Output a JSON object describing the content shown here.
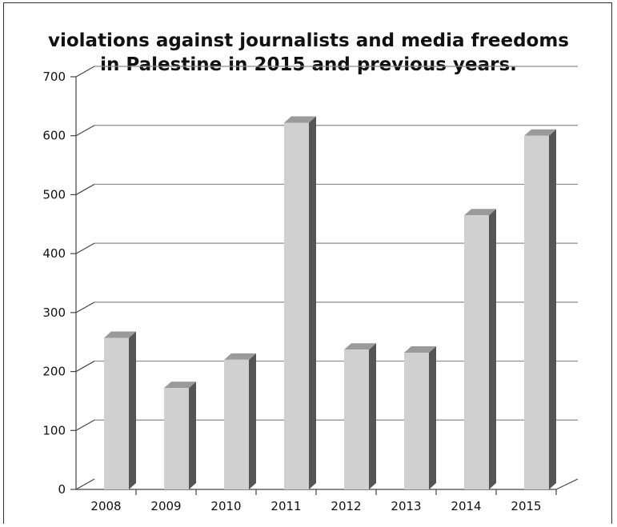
{
  "chart_data": {
    "type": "bar",
    "title_lines": [
      "violations against journalists and media freedoms",
      "in Palestine in 2015 and previous years."
    ],
    "categories": [
      "2008",
      "2009",
      "2010",
      "2011",
      "2012",
      "2013",
      "2014",
      "2015"
    ],
    "series": [
      {
        "values": [
          257,
          172,
          220,
          622,
          237,
          232,
          465,
          600
        ]
      }
    ],
    "ylim": [
      0,
      700
    ],
    "yticks": [
      0,
      100,
      200,
      300,
      400,
      500,
      600,
      700
    ],
    "grid": true,
    "style": "3d-column",
    "colors": {
      "bar_front": "#d0d0d0",
      "bar_top": "#9a9a9a",
      "bar_side": "#555555",
      "gridline": "#8c8c8c",
      "axis": "#444444"
    }
  }
}
